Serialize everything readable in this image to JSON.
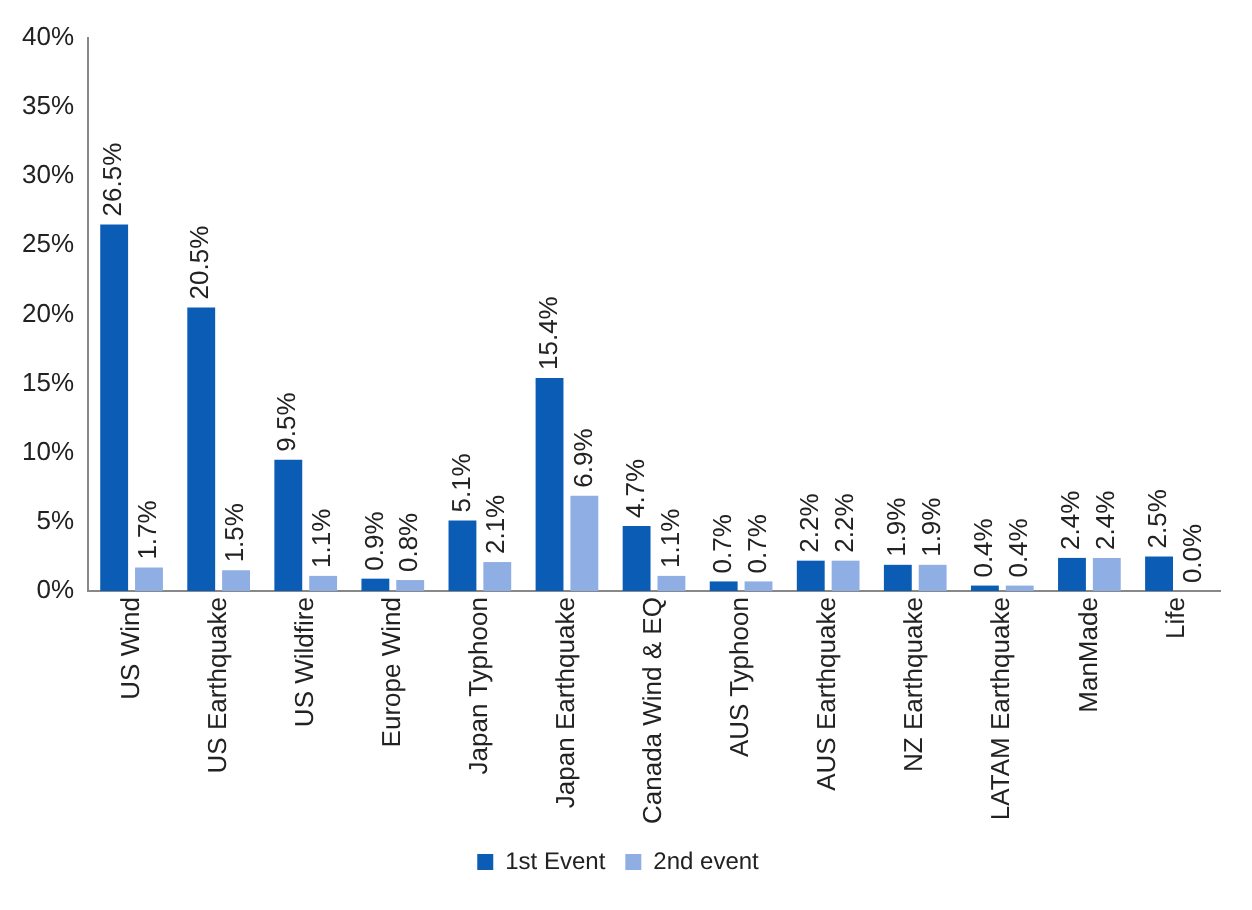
{
  "chart_data": {
    "type": "bar",
    "categories": [
      "US Wind",
      "US Earthquake",
      "US Wildfire",
      "Europe Wind",
      "Japan Typhoon",
      "Japan Earthquake",
      "Canada Wind & EQ",
      "AUS Typhoon",
      "AUS Earthquake",
      "NZ Earthquake",
      "LATAM Earthquake",
      "ManMade",
      "Life"
    ],
    "series": [
      {
        "name": "1st Event",
        "color": "#0b5cb5",
        "values": [
          26.5,
          20.5,
          9.5,
          0.9,
          5.1,
          15.4,
          4.7,
          0.7,
          2.2,
          1.9,
          0.4,
          2.4,
          2.5
        ],
        "value_labels": [
          "26.5%",
          "20.5%",
          "9.5%",
          "0.9%",
          "5.1%",
          "15.4%",
          "4.7%",
          "0.7%",
          "2.2%",
          "1.9%",
          "0.4%",
          "2.4%",
          "2.5%"
        ]
      },
      {
        "name": "2nd event",
        "color": "#8faee3",
        "values": [
          1.7,
          1.5,
          1.1,
          0.8,
          2.1,
          6.9,
          1.1,
          0.7,
          2.2,
          1.9,
          0.4,
          2.4,
          0.0
        ],
        "value_labels": [
          "1.7%",
          "1.5%",
          "1.1%",
          "0.8%",
          "2.1%",
          "6.9%",
          "1.1%",
          "0.7%",
          "2.2%",
          "1.9%",
          "0.4%",
          "2.4%",
          "0.0%"
        ]
      }
    ],
    "ylim": [
      0,
      40
    ],
    "yticks": [
      {
        "value": 0,
        "label": "0%"
      },
      {
        "value": 5,
        "label": "5%"
      },
      {
        "value": 10,
        "label": "10%"
      },
      {
        "value": 15,
        "label": "15%"
      },
      {
        "value": 20,
        "label": "20%"
      },
      {
        "value": 25,
        "label": "25%"
      },
      {
        "value": 30,
        "label": "30%"
      },
      {
        "value": 35,
        "label": "35%"
      },
      {
        "value": 40,
        "label": "40%"
      }
    ],
    "grid": false,
    "legend": "bottom"
  }
}
